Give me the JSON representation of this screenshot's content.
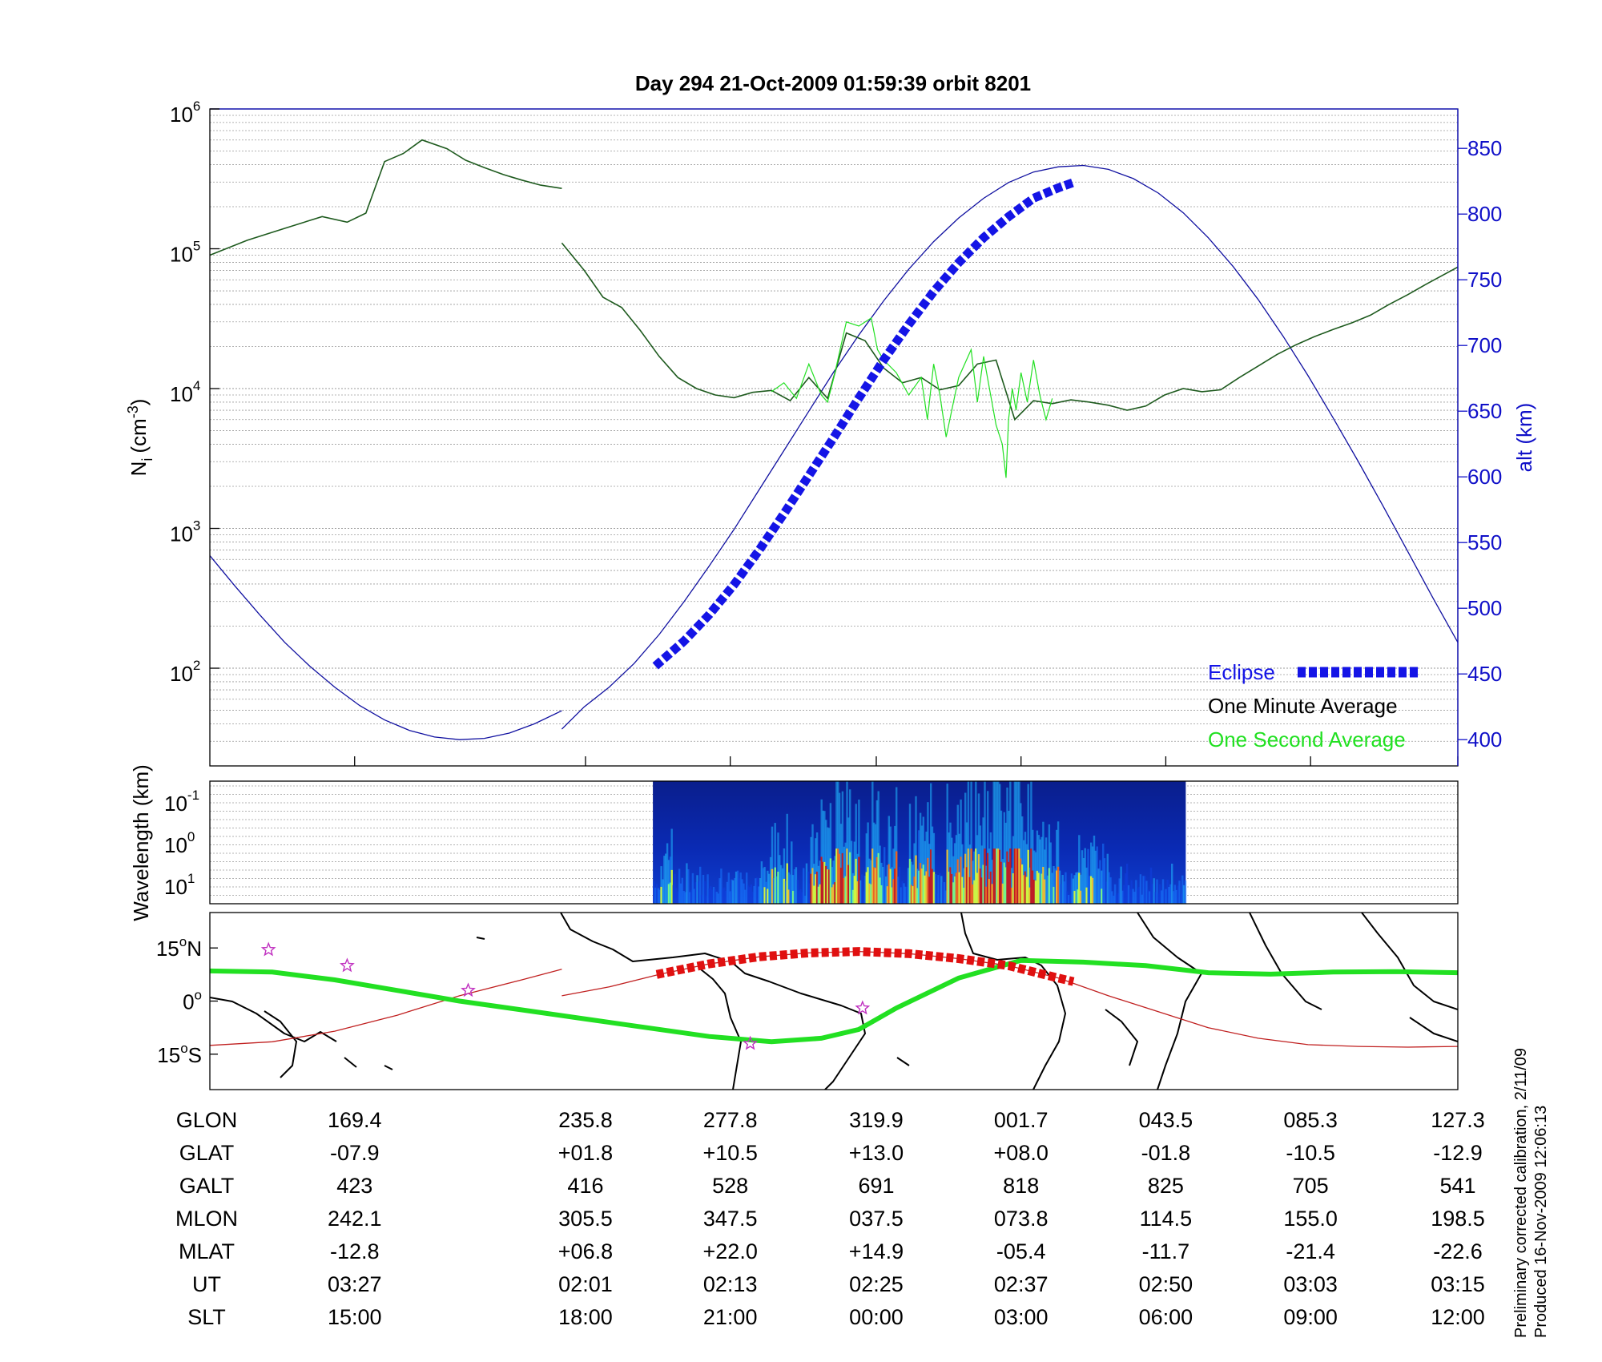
{
  "title": "Day 294  21-Oct-2009 01:59:39   orbit 8201",
  "footnote": [
    "Preliminary corrected calibration, 2/11/09",
    "Produced 16-Nov-2009 12:06:13"
  ],
  "colors": {
    "eclipse": "#1414e6",
    "minute_avg": "#1e5a1e",
    "second_avg": "#22e022",
    "altitude": "#1010a0",
    "ground_track": "#22e022",
    "magnetic_equator": "#c02020",
    "eclipse_track": "#e01010",
    "stars": "#c030c0"
  },
  "chart_data": [
    {
      "type": "line",
      "panel": "ion density",
      "ylabel_main": "N",
      "ylabel_sub": "i",
      "ylabel_units": "(cm",
      "ylabel_exp": "-3",
      "ylabel_close": ")",
      "ylabel_right": "alt (km)",
      "y_scale": "log",
      "ylim": [
        20,
        1000000
      ],
      "yticks": [
        {
          "base": "10",
          "exp": "2"
        },
        {
          "base": "10",
          "exp": "3"
        },
        {
          "base": "10",
          "exp": "4"
        },
        {
          "base": "10",
          "exp": "5"
        },
        {
          "base": "10",
          "exp": "6"
        }
      ],
      "ylim_right": [
        380,
        880
      ],
      "yticks_right": [
        "400",
        "450",
        "500",
        "550",
        "600",
        "650",
        "700",
        "750",
        "800",
        "850"
      ],
      "xlim": [
        0,
        100
      ],
      "grid": true,
      "legend_position": "bottom-right",
      "legend": [
        "Eclipse",
        "One Minute Average",
        "One Second Average"
      ],
      "series": [
        {
          "name": "One Minute Average",
          "x": [
            0,
            3,
            6,
            9,
            11,
            12.5,
            14,
            15.5,
            17,
            19,
            20.5,
            22,
            23.5,
            25,
            26.5,
            28.2
          ],
          "y": [
            90000,
            115000,
            140000,
            170000,
            155000,
            180000,
            420000,
            480000,
            600000,
            520000,
            430000,
            380000,
            340000,
            310000,
            285000,
            270000
          ],
          "x2": [
            28.2,
            30,
            31.5,
            33,
            34.5,
            36,
            37.5,
            39,
            40.5,
            42,
            43.5,
            45,
            46.5,
            48,
            49.5,
            51,
            52.5,
            54,
            55.5,
            57,
            58.5,
            60,
            61.5,
            63,
            64.5,
            66,
            67.5,
            69,
            70.5,
            72,
            73.5,
            75,
            76.5,
            78,
            79.5,
            81,
            82.5,
            84,
            85.5,
            87,
            88.5,
            90,
            91.5,
            93,
            94.5,
            96,
            97.5,
            100
          ],
          "y2": [
            110000,
            70000,
            45000,
            38000,
            26000,
            17000,
            12000,
            10000,
            9000,
            8600,
            9400,
            9700,
            8200,
            12000,
            8500,
            25000,
            22000,
            14000,
            11000,
            12000,
            9800,
            10500,
            15000,
            16000,
            6000,
            8200,
            7800,
            8300,
            8000,
            7600,
            7000,
            7500,
            9000,
            10000,
            9500,
            9800,
            12000,
            14500,
            17500,
            20500,
            23500,
            26500,
            29500,
            33500,
            40000,
            47000,
            56000,
            74000
          ]
        },
        {
          "name": "One Second Average",
          "x": [
            45,
            46,
            47,
            48,
            49,
            49.5,
            50,
            51,
            52,
            53,
            53.5,
            54,
            55,
            56,
            57,
            57.5,
            58,
            58.5,
            59,
            60,
            61,
            61.5,
            62,
            63,
            63.5,
            63.8,
            64,
            64.3,
            64.6,
            65,
            65.5,
            66,
            66.5,
            67,
            67.5
          ],
          "y": [
            9500,
            11000,
            8500,
            15000,
            9000,
            8000,
            12000,
            30000,
            28000,
            32000,
            19000,
            16000,
            13000,
            9000,
            12000,
            6000,
            15000,
            9000,
            4500,
            12000,
            19000,
            8000,
            17000,
            5500,
            4000,
            2300,
            6000,
            10000,
            7000,
            13000,
            8000,
            16000,
            9000,
            6000,
            8500
          ]
        },
        {
          "name": "alt (km)",
          "x": [
            0,
            2,
            4,
            6,
            8,
            10,
            12,
            14,
            16,
            18,
            20,
            22,
            24,
            26,
            28.2,
            28.2,
            30,
            32,
            34,
            36,
            38,
            40,
            42,
            44,
            46,
            48,
            50,
            52,
            54,
            56,
            58,
            60,
            62,
            64,
            66,
            68,
            70,
            72,
            74,
            76,
            78,
            80,
            82,
            84,
            86,
            88,
            90,
            92,
            94,
            96,
            98,
            100
          ],
          "y": [
            540,
            517,
            495,
            474,
            456,
            440,
            426,
            415,
            407,
            402,
            400,
            401,
            405,
            412,
            422,
            408,
            425,
            440,
            458,
            480,
            505,
            532,
            560,
            590,
            620,
            650,
            680,
            708,
            734,
            758,
            779,
            797,
            812,
            824,
            832,
            836,
            837,
            834,
            827,
            816,
            801,
            782,
            760,
            735,
            707,
            677,
            645,
            612,
            578,
            543,
            508,
            474
          ]
        },
        {
          "name": "Eclipse",
          "x": [
            35.7,
            38,
            40,
            42,
            44,
            46,
            48,
            50,
            52,
            54,
            56,
            58,
            60,
            62,
            64,
            66,
            68,
            69.2
          ],
          "y": [
            456,
            475,
            495,
            518,
            544,
            572,
            601,
            630,
            660,
            689,
            716,
            741,
            763,
            782,
            798,
            812,
            820,
            824
          ]
        }
      ]
    },
    {
      "type": "heatmap",
      "panel": "spectrogram",
      "ylabel": "Wavelength (km)",
      "yticks": [
        {
          "base": "10",
          "exp": "-1"
        },
        {
          "base": "10",
          "exp": "0"
        },
        {
          "base": "10",
          "exp": "1"
        }
      ],
      "x_range": [
        35.5,
        78.2
      ],
      "colormap": "jet"
    },
    {
      "type": "line",
      "panel": "ground track map",
      "yticks": [
        {
          "value": "15",
          "sup": "o",
          "suffix": "N"
        },
        {
          "value": "0",
          "sup": "o",
          "suffix": ""
        },
        {
          "value": "15",
          "sup": "o",
          "suffix": "S"
        }
      ],
      "ylim": [
        -25,
        25
      ],
      "series": [
        {
          "name": "ground_track",
          "x": [
            0,
            5,
            10,
            15,
            20,
            25,
            30,
            35,
            40,
            45,
            49,
            52,
            55,
            60,
            65,
            70,
            75,
            80,
            85,
            90,
            95,
            100
          ],
          "y": [
            8.5,
            8.2,
            6,
            3,
            0,
            -2.5,
            -5,
            -7.5,
            -10,
            -11.5,
            -10.5,
            -8,
            -2,
            6.5,
            11.5,
            11,
            10,
            8,
            7.6,
            8.2,
            8.3,
            8
          ]
        },
        {
          "name": "magnetic_equator",
          "x": [
            0,
            5,
            10,
            15,
            20,
            25,
            28.2,
            28.2,
            32,
            36,
            40,
            44,
            48,
            52,
            56,
            60,
            64,
            68,
            72,
            76,
            80,
            84,
            88,
            92,
            96,
            100
          ],
          "y": [
            -12.5,
            -11.5,
            -8.5,
            -4,
            1.5,
            6,
            9,
            1.5,
            4,
            7.5,
            10.5,
            12.5,
            13.6,
            14,
            13.4,
            12,
            10,
            6.5,
            1.5,
            -3,
            -7.5,
            -10.5,
            -12.3,
            -12.8,
            -13,
            -12.8
          ]
        },
        {
          "name": "eclipse_track",
          "x": [
            35.8,
            40,
            44,
            48,
            52,
            56,
            60,
            64,
            68,
            69.2
          ],
          "y": [
            7.5,
            10.5,
            12.5,
            13.6,
            14,
            13.4,
            12,
            10,
            6.5,
            5.5
          ]
        }
      ],
      "stars": {
        "x": [
          4.7,
          11,
          20.7,
          43.3,
          52.3
        ],
        "y": [
          14.5,
          10,
          3,
          -12,
          -2
        ]
      }
    }
  ],
  "table": {
    "row_labels": [
      "GLON",
      "GLAT",
      "GALT",
      "MLON",
      "MLAT",
      "UT",
      "SLT"
    ],
    "columns": [
      {
        "x": 11.6,
        "values": [
          "169.4",
          "-07.9",
          "423",
          "242.1",
          "-12.8",
          "03:27",
          "15:00"
        ]
      },
      {
        "x": 30.1,
        "values": [
          "235.8",
          "+01.8",
          "416",
          "305.5",
          "+06.8",
          "02:01",
          "18:00"
        ]
      },
      {
        "x": 41.7,
        "values": [
          "277.8",
          "+10.5",
          "528",
          "347.5",
          "+22.0",
          "02:13",
          "21:00"
        ]
      },
      {
        "x": 53.4,
        "values": [
          "319.9",
          "+13.0",
          "691",
          "037.5",
          "+14.9",
          "02:25",
          "00:00"
        ]
      },
      {
        "x": 65.0,
        "values": [
          "001.7",
          "+08.0",
          "818",
          "073.8",
          "-05.4",
          "02:37",
          "03:00"
        ]
      },
      {
        "x": 76.6,
        "values": [
          "043.5",
          "-01.8",
          "825",
          "114.5",
          "-11.7",
          "02:50",
          "06:00"
        ]
      },
      {
        "x": 88.2,
        "values": [
          "085.3",
          "-10.5",
          "705",
          "155.0",
          "-21.4",
          "03:03",
          "09:00"
        ]
      },
      {
        "x": 100,
        "values": [
          "127.3",
          "-12.9",
          "541",
          "198.5",
          "-22.6",
          "03:15",
          "12:00"
        ]
      }
    ]
  }
}
